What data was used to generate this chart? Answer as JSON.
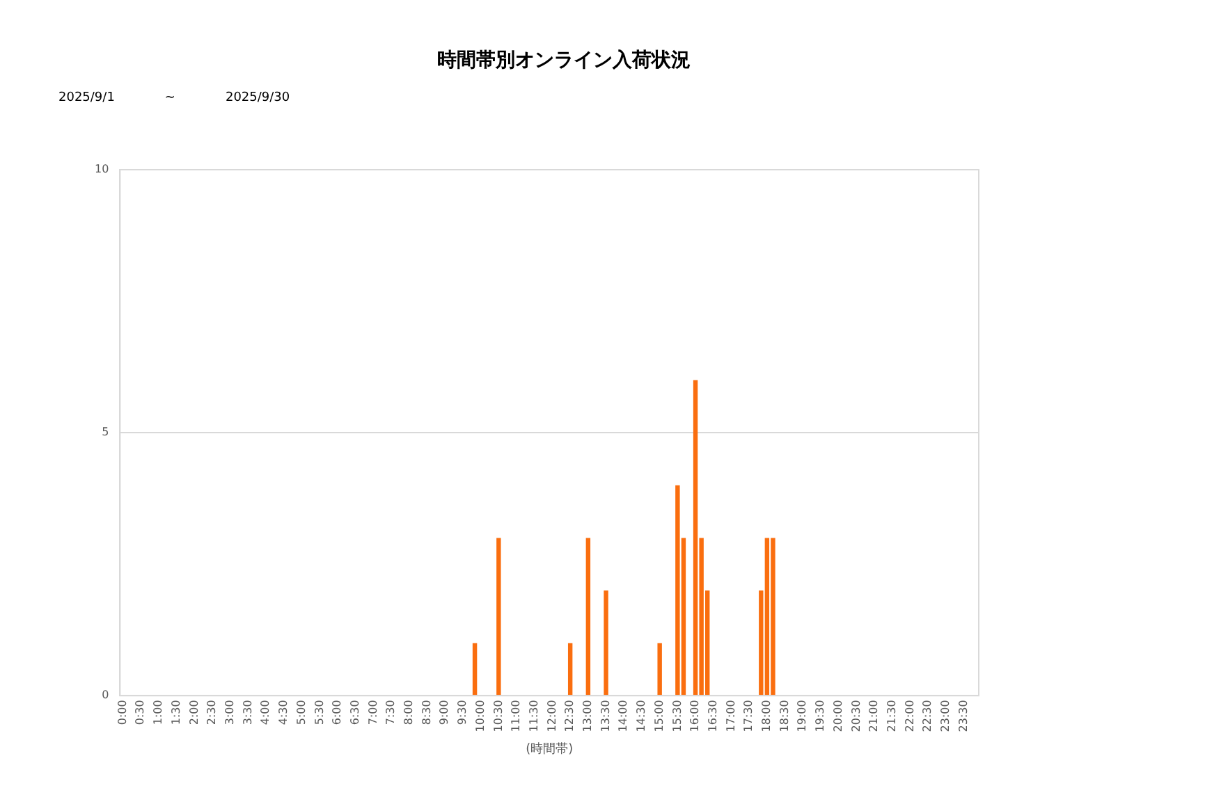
{
  "chart_data": {
    "type": "bar",
    "title": "時間帯別オンライン入荷状況",
    "subtitle": "2025/9/1　　　　~　　　　2025/9/30",
    "xlabel": "(時間帯)",
    "categories": [
      "0:00",
      null,
      null,
      "0:30",
      null,
      null,
      "1:00",
      null,
      null,
      "1:30",
      null,
      null,
      "2:00",
      null,
      null,
      "2:30",
      null,
      null,
      "3:00",
      null,
      null,
      "3:30",
      null,
      null,
      "4:00",
      null,
      null,
      "4:30",
      null,
      null,
      "5:00",
      null,
      null,
      "5:30",
      null,
      null,
      "6:00",
      null,
      null,
      "6:30",
      null,
      null,
      "7:00",
      null,
      null,
      "7:30",
      null,
      null,
      "8:00",
      null,
      null,
      "8:30",
      null,
      null,
      "9:00",
      null,
      null,
      "9:30",
      null,
      null,
      "10:00",
      null,
      null,
      "10:30",
      null,
      null,
      "11:00",
      null,
      null,
      "11:30",
      null,
      null,
      "12:00",
      null,
      null,
      "12:30",
      null,
      null,
      "13:00",
      null,
      null,
      "13:30",
      null,
      null,
      "14:00",
      null,
      null,
      "14:30",
      null,
      null,
      "15:00",
      null,
      null,
      "15:30",
      null,
      null,
      "16:00",
      null,
      null,
      "16:30",
      null,
      null,
      "17:00",
      null,
      null,
      "17:30",
      null,
      null,
      "18:00",
      null,
      null,
      "18:30",
      null,
      null,
      "19:00",
      null,
      null,
      "19:30",
      null,
      null,
      "20:00",
      null,
      null,
      "20:30",
      null,
      null,
      "21:00",
      null,
      null,
      "21:30",
      null,
      null,
      "22:00",
      null,
      null,
      "22:30",
      null,
      null,
      "23:00",
      null,
      null,
      "23:30",
      null,
      null
    ],
    "values": [
      0,
      0,
      0,
      0,
      0,
      0,
      0,
      0,
      0,
      0,
      0,
      0,
      0,
      0,
      0,
      0,
      0,
      0,
      0,
      0,
      0,
      0,
      0,
      0,
      0,
      0,
      0,
      0,
      0,
      0,
      0,
      0,
      0,
      0,
      0,
      0,
      0,
      0,
      0,
      0,
      0,
      0,
      0,
      0,
      0,
      0,
      0,
      0,
      0,
      0,
      0,
      0,
      0,
      0,
      0,
      0,
      0,
      0,
      0,
      1,
      0,
      0,
      0,
      3,
      0,
      0,
      0,
      0,
      0,
      0,
      0,
      0,
      0,
      0,
      0,
      1,
      0,
      0,
      3,
      0,
      0,
      2,
      0,
      0,
      0,
      0,
      0,
      0,
      0,
      0,
      1,
      0,
      0,
      4,
      3,
      0,
      6,
      3,
      2,
      0,
      0,
      0,
      0,
      0,
      0,
      0,
      0,
      2,
      3,
      3,
      0,
      0,
      0,
      0,
      0,
      0,
      0,
      0,
      0,
      0,
      0,
      0,
      0,
      0,
      0,
      0,
      0,
      0,
      0,
      0,
      0,
      0,
      0,
      0,
      0,
      0,
      0,
      0,
      0,
      0,
      0,
      0,
      0,
      0
    ],
    "color": "#fa6e0f",
    "ylim": [
      0,
      10
    ],
    "yticks": [
      0,
      5,
      10
    ],
    "grid": "y",
    "legend": false
  }
}
